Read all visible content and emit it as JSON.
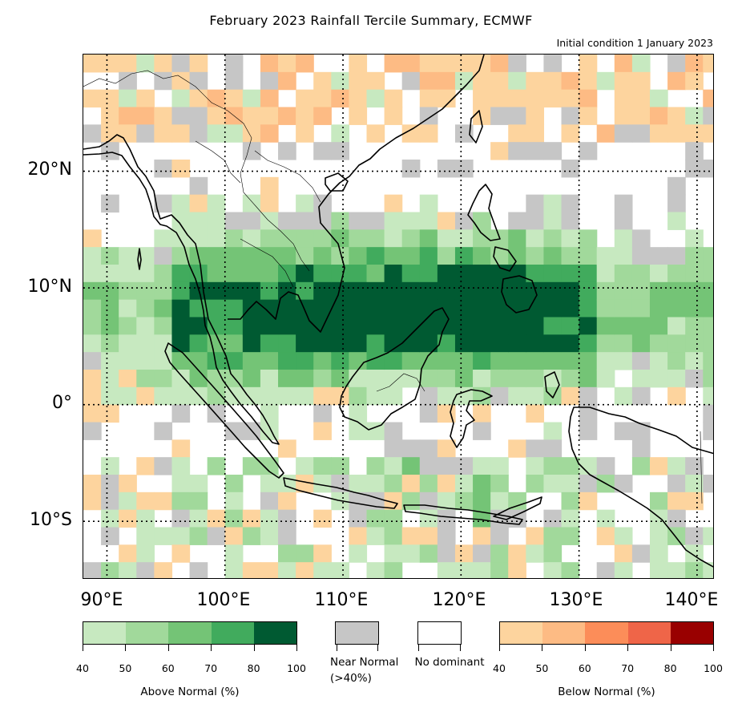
{
  "title": "February 2023 Rainfall Tercile Summary, ECMWF",
  "subtitle": "Initial condition 1 January 2023",
  "map": {
    "extent": {
      "lon_min": 88,
      "lon_max": 141.5,
      "lat_min": -15,
      "lat_max": 30
    },
    "lat_labels": [
      "20°N",
      "10°N",
      "0°",
      "10°S"
    ],
    "lat_values": [
      20,
      10,
      0,
      -10
    ],
    "lon_labels": [
      "90°E",
      "100°E",
      "110°E",
      "120°E",
      "130°E",
      "140°E"
    ],
    "lon_values": [
      90,
      100,
      110,
      120,
      130,
      140
    ]
  },
  "colors": {
    "above": [
      "#c7e9c0",
      "#a1d99b",
      "#74c476",
      "#41ab5d",
      "#005a32"
    ],
    "below": [
      "#fdd49e",
      "#fdbb84",
      "#fc8d59",
      "#ef6548",
      "#990000"
    ],
    "near_normal": "#c6c6c6",
    "no_dominant": "#ffffff"
  },
  "legend": {
    "above": {
      "label": "Above Normal (%)",
      "ticks": [
        "40",
        "50",
        "60",
        "70",
        "80",
        "100"
      ]
    },
    "near_normal": {
      "label": "Near Normal (>40%)"
    },
    "no_dominant": {
      "label": "No dominant"
    },
    "below": {
      "label": "Below Normal (%)",
      "ticks": [
        "40",
        "50",
        "60",
        "70",
        "80",
        "100"
      ]
    }
  }
}
